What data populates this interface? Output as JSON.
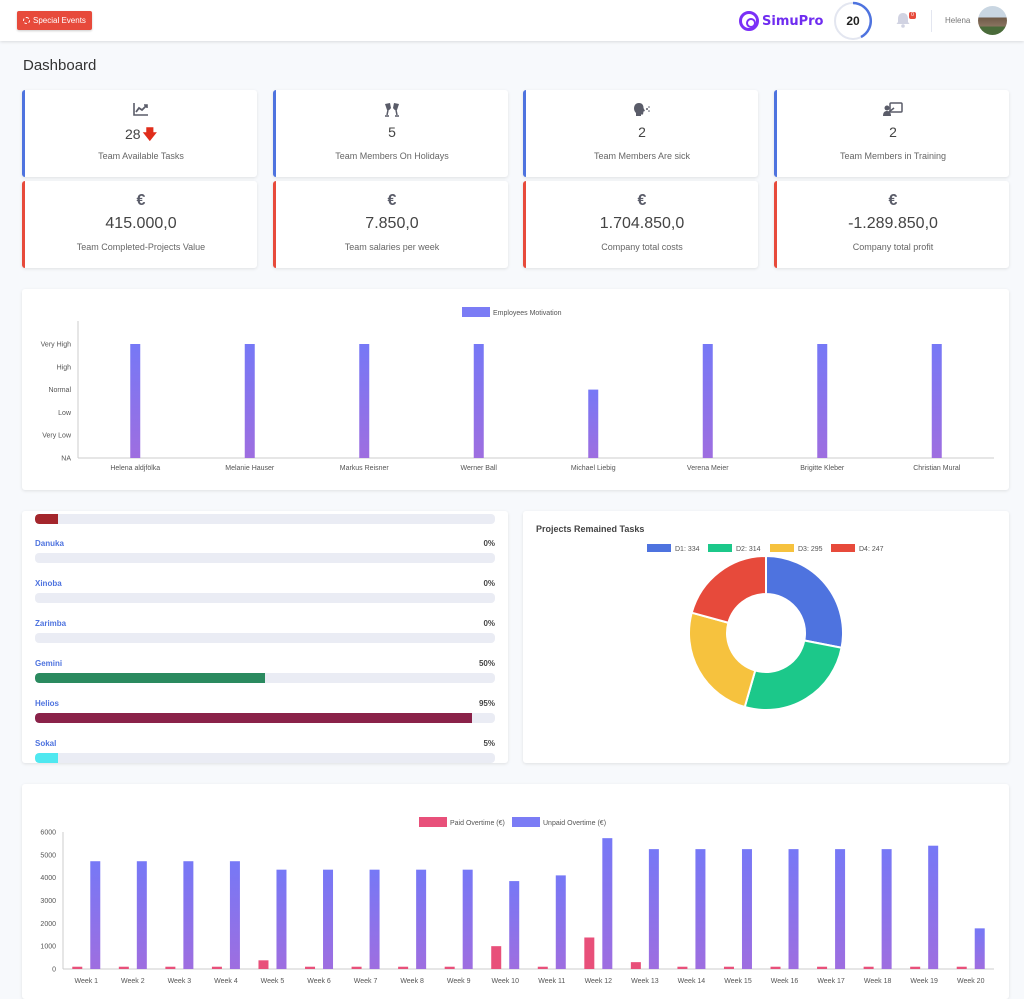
{
  "topbar": {
    "special_events_label": "Special Events",
    "brand": "SimuPro",
    "counter": "20",
    "notification_count": "0",
    "username": "Helena"
  },
  "page_title": "Dashboard",
  "stats": [
    {
      "icon": "chart-line-icon",
      "value": "28",
      "label": "Team Available Tasks",
      "trend": "down"
    },
    {
      "icon": "holiday-cheers-icon",
      "value": "5",
      "label": "Team Members On Holidays"
    },
    {
      "icon": "sick-head-icon",
      "value": "2",
      "label": "Team Members Are sick"
    },
    {
      "icon": "training-icon",
      "value": "2",
      "label": "Team Members in Training"
    }
  ],
  "finance": [
    {
      "icon": "€",
      "value": "415.000,0",
      "label": "Team Completed-Projects Value"
    },
    {
      "icon": "€",
      "value": "7.850,0",
      "label": "Team salaries per week"
    },
    {
      "icon": "€",
      "value": "1.704.850,0",
      "label": "Company total costs"
    },
    {
      "icon": "€",
      "value": "-1.289.850,0",
      "label": "Company total profit"
    }
  ],
  "projects": [
    {
      "name": "",
      "percent_label": "",
      "value": 0.05,
      "color": "#a4262c"
    },
    {
      "name": "Danuka",
      "percent_label": "0%",
      "value": 0,
      "color": "#4e73df"
    },
    {
      "name": "Xinoba",
      "percent_label": "0%",
      "value": 0,
      "color": "#4e73df"
    },
    {
      "name": "Zarimba",
      "percent_label": "0%",
      "value": 0,
      "color": "#4e73df"
    },
    {
      "name": "Gemini",
      "percent_label": "50%",
      "value": 0.5,
      "color": "#2a8a5f"
    },
    {
      "name": "Helios",
      "percent_label": "95%",
      "value": 0.95,
      "color": "#8a2249"
    },
    {
      "name": "Sokal",
      "percent_label": "5%",
      "value": 0.05,
      "color": "#4fe8f0"
    }
  ],
  "chart_data": [
    {
      "type": "bar",
      "title": "",
      "legend": [
        "Employees Motivation"
      ],
      "legend_position": "top",
      "y_categories": [
        "NA",
        "Very Low",
        "Low",
        "Normal",
        "High",
        "Very High"
      ],
      "categories": [
        "Helena aldjfölka",
        "Melanie Hauser",
        "Markus Reisner",
        "Werner Ball",
        "Michael Liebig",
        "Verena Meier",
        "Brigitte Kleber",
        "Christian Mural"
      ],
      "series": [
        {
          "name": "Employees Motivation",
          "values": [
            5,
            5,
            5,
            5,
            3,
            5,
            5,
            5
          ],
          "color": "#7b7cf5"
        }
      ]
    },
    {
      "type": "pie",
      "title": "Projects Remained Tasks",
      "legend_position": "top",
      "categories": [
        "D1: 334",
        "D2: 314",
        "D3: 295",
        "D4: 247"
      ],
      "values": [
        334,
        314,
        295,
        247
      ],
      "colors": [
        "#4e73df",
        "#1cc88a",
        "#f6c23e",
        "#e74a3b"
      ]
    },
    {
      "type": "bar",
      "title": "",
      "legend_position": "top",
      "ylim": [
        0,
        6000
      ],
      "yticks": [
        "0",
        "1000",
        "2000",
        "3000",
        "4000",
        "5000",
        "6000"
      ],
      "categories": [
        "Week 1",
        "Week 2",
        "Week 3",
        "Week 4",
        "Week 5",
        "Week 6",
        "Week 7",
        "Week 8",
        "Week 9",
        "Week 10",
        "Week 11",
        "Week 12",
        "Week 13",
        "Week 14",
        "Week 15",
        "Week 16",
        "Week 17",
        "Week 18",
        "Week 19",
        "Week 20"
      ],
      "series": [
        {
          "name": "Paid Overtime (€)",
          "color": "#e8507a",
          "values": [
            100,
            100,
            100,
            100,
            380,
            100,
            100,
            100,
            100,
            1000,
            100,
            1380,
            300,
            100,
            100,
            100,
            100,
            100,
            100,
            100
          ]
        },
        {
          "name": "Unpaid Overtime (€)",
          "color": "#7b7cf5",
          "values": [
            4720,
            4720,
            4720,
            4720,
            4350,
            4350,
            4350,
            4350,
            4350,
            3850,
            4100,
            5730,
            5250,
            5250,
            5250,
            5250,
            5250,
            5250,
            5400,
            1780
          ]
        }
      ]
    }
  ]
}
